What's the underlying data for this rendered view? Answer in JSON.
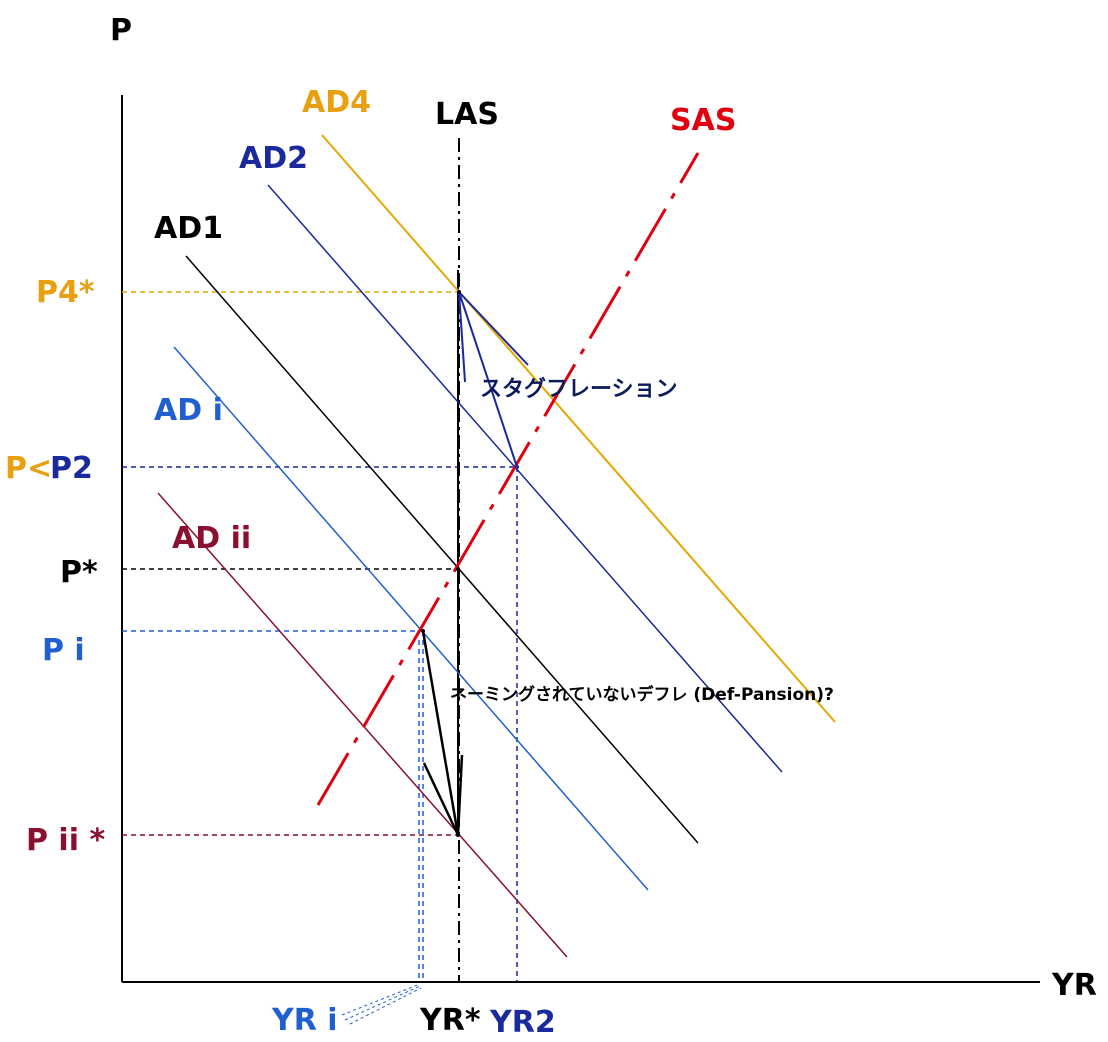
{
  "axes": {
    "y_label": "P",
    "x_label": "YR"
  },
  "curves": {
    "ad4": "AD4",
    "ad2": "AD2",
    "ad1": "AD1",
    "ad_i": "AD i",
    "ad_ii": "AD ii",
    "las": "LAS",
    "sas": "SAS"
  },
  "price_levels": {
    "p4": "P4*",
    "p2_prefix": "P<",
    "p2": "P2",
    "p_star": "P*",
    "p_i": "P i",
    "p_ii": "P ii *"
  },
  "output_levels": {
    "yr_i": "YR i",
    "yr_star": "YR*",
    "yr2": "YR2"
  },
  "annotations": {
    "stagflation": "スタグフレーション",
    "deflation": "ネーミングされていないデフレ (Def-Pansion)?"
  },
  "colors": {
    "ad4": "#e6a800",
    "ad4_label": "#e8a010",
    "ad2": "#1a2a9c",
    "ad1": "#000000",
    "ad_i": "#1f5fd0",
    "ad_ii": "#8a1030",
    "sas": "#e00010",
    "axis": "#000000"
  }
}
